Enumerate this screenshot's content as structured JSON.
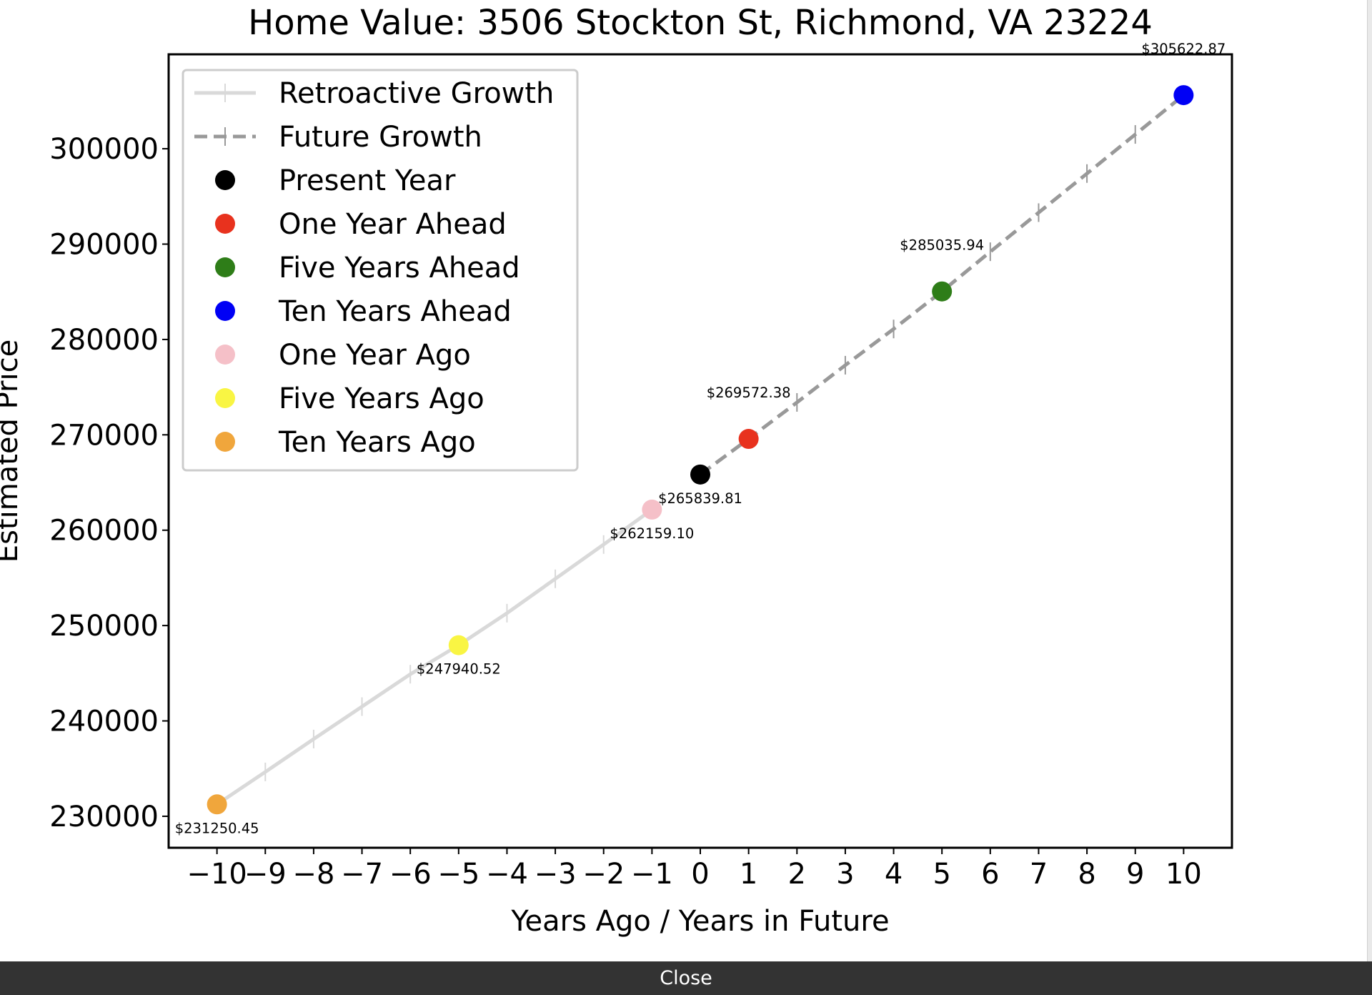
{
  "chart_data": {
    "type": "line",
    "title": "Home Value: 3506 Stockton St, Richmond, VA 23224",
    "xlabel": "Years Ago / Years in Future",
    "ylabel": "Estimated Price",
    "xlim": [
      -11,
      11
    ],
    "ylim": [
      226700,
      309900
    ],
    "x_ticks": [
      -10,
      -9,
      -8,
      -7,
      -6,
      -5,
      -4,
      -3,
      -2,
      -1,
      0,
      1,
      2,
      3,
      4,
      5,
      6,
      7,
      8,
      9,
      10
    ],
    "x_tick_labels": [
      "−10",
      "−9",
      "−8",
      "−7",
      "−6",
      "−5",
      "−4",
      "−3",
      "−2",
      "−1",
      "0",
      "1",
      "2",
      "3",
      "4",
      "5",
      "6",
      "7",
      "8",
      "9",
      "10"
    ],
    "y_ticks": [
      230000,
      240000,
      250000,
      260000,
      270000,
      280000,
      290000,
      300000
    ],
    "y_tick_labels": [
      "230000",
      "240000",
      "250000",
      "260000",
      "270000",
      "280000",
      "290000",
      "300000"
    ],
    "grid": false,
    "legend_position": "top-left",
    "series": [
      {
        "name": "Retroactive Growth",
        "style": "solid",
        "color": "#d9d9d9",
        "x": [
          -10,
          -9,
          -8,
          -7,
          -6,
          -5,
          -4,
          -3,
          -2,
          -1
        ],
        "y": [
          231250.45,
          234650,
          238100,
          241500,
          244900,
          247940.52,
          251300,
          254900,
          258500,
          262159.1
        ]
      },
      {
        "name": "Future Growth",
        "style": "dashed",
        "color": "#999999",
        "x": [
          0,
          1,
          2,
          3,
          4,
          5,
          6,
          7,
          8,
          9,
          10
        ],
        "y": [
          265839.81,
          269572.38,
          273400,
          277300,
          281100,
          285035.94,
          289200,
          293300,
          297400,
          301500,
          305622.87
        ]
      }
    ],
    "points": [
      {
        "name": "Present Year",
        "x": 0,
        "y": 265839.81,
        "color": "#000000",
        "label": "$265839.81",
        "label_pos": "below"
      },
      {
        "name": "One Year Ahead",
        "x": 1,
        "y": 269572.38,
        "color": "#e8321e",
        "label": "$269572.38",
        "label_pos": "above"
      },
      {
        "name": "Five Years Ahead",
        "x": 5,
        "y": 285035.94,
        "color": "#2e7d18",
        "label": "$285035.94",
        "label_pos": "above"
      },
      {
        "name": "Ten Years Ahead",
        "x": 10,
        "y": 305622.87,
        "color": "#0000f5",
        "label": "$305622.87",
        "label_pos": "above"
      },
      {
        "name": "One Year Ago",
        "x": -1,
        "y": 262159.1,
        "color": "#f5c0c8",
        "label": "$262159.10",
        "label_pos": "below"
      },
      {
        "name": "Five Years Ago",
        "x": -5,
        "y": 247940.52,
        "color": "#f9f543",
        "label": "$247940.52",
        "label_pos": "below"
      },
      {
        "name": "Ten Years Ago",
        "x": -10,
        "y": 231250.45,
        "color": "#f0a63c",
        "label": "$231250.45",
        "label_pos": "below"
      }
    ]
  },
  "footer": {
    "close_label": "Close"
  }
}
